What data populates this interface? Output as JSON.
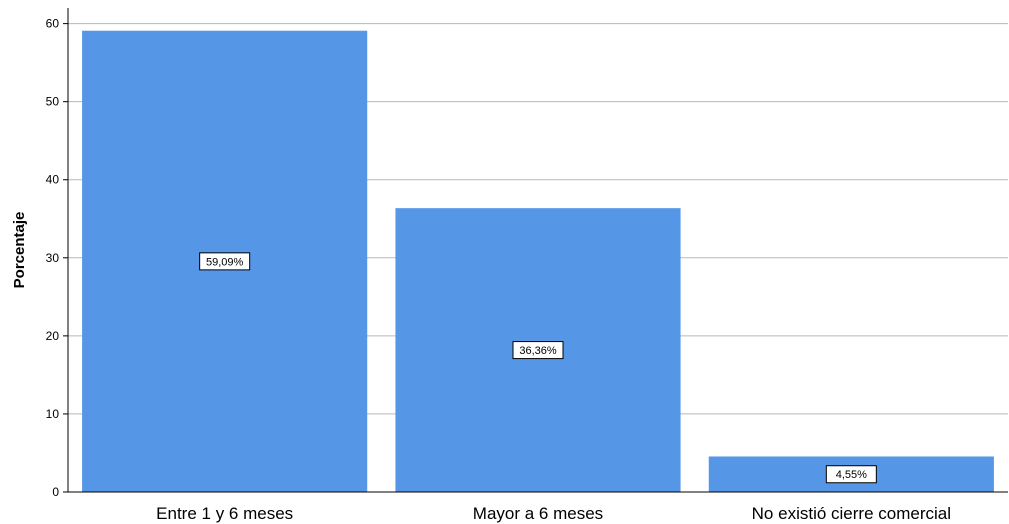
{
  "chart_data": {
    "type": "bar",
    "title": "",
    "xlabel": "",
    "ylabel": "Porcentaje",
    "categories": [
      "Entre 1 y 6 meses",
      "Mayor a 6 meses",
      "No existió cierre comercial"
    ],
    "values": [
      59.09,
      36.36,
      4.55
    ],
    "data_labels": [
      "59,09%",
      "36,36%",
      "4,55%"
    ],
    "ylim": [
      0,
      62
    ],
    "yticks": [
      0,
      10,
      20,
      30,
      40,
      50,
      60
    ],
    "grid": true,
    "legend": "none",
    "bar_color": "#5596e6",
    "grid_color": "#b8b8b8"
  }
}
